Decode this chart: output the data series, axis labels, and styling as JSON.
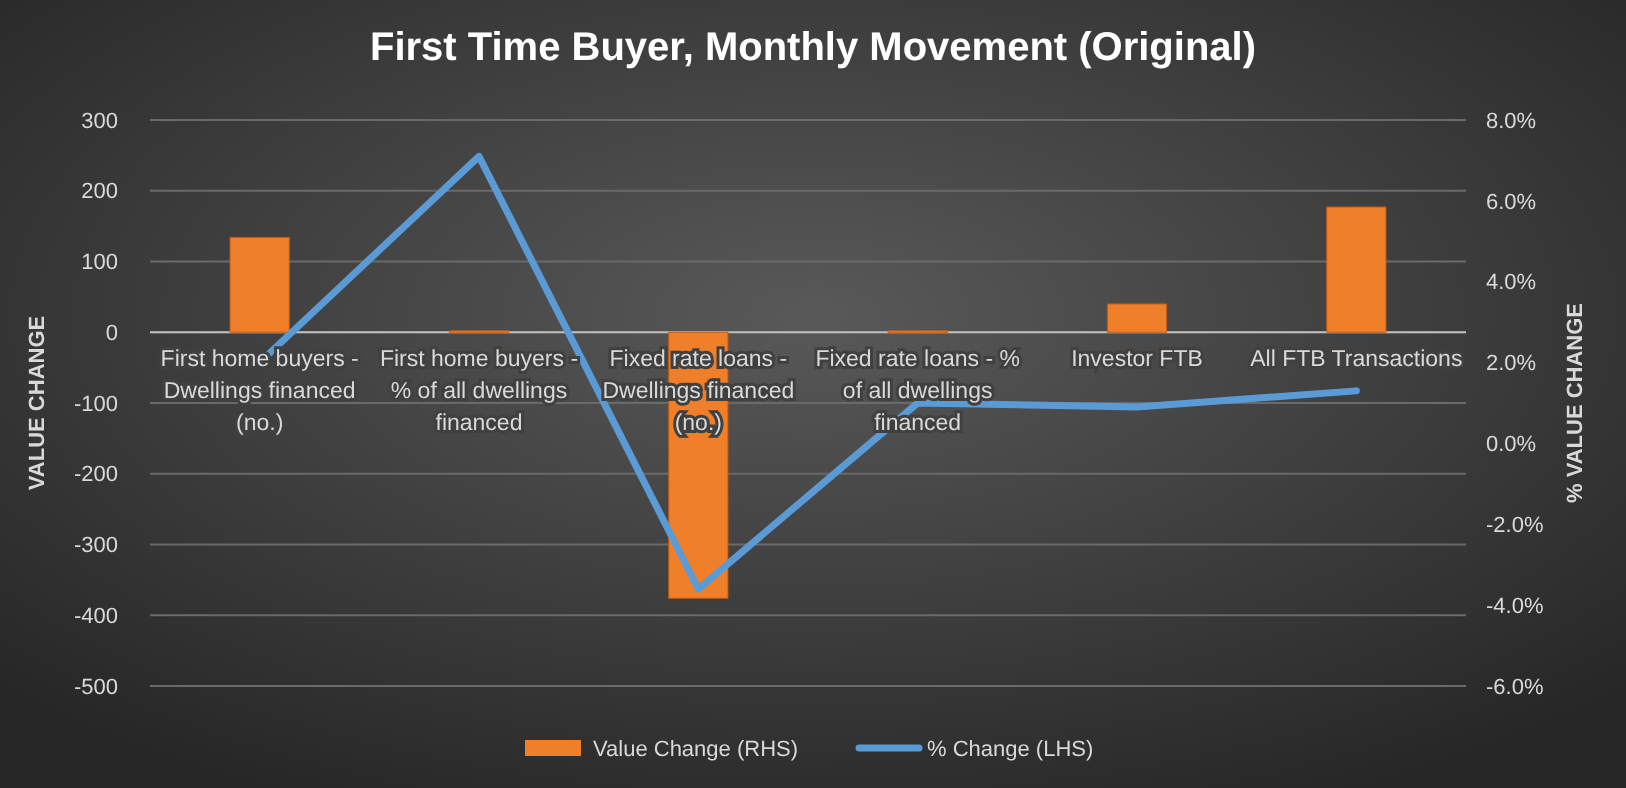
{
  "chart_data": {
    "type": "bar",
    "title": "First Time Buyer, Monthly Movement (Original)",
    "ylabel": "VALUE CHANGE",
    "y2label": "% VALUE CHANGE",
    "categories": [
      "First home buyers - Dwellings financed (no.)",
      "First home buyers - % of all dwellings financed",
      "Fixed rate loans - Dwellings financed (no.)",
      "Fixed rate loans - % of all dwellings financed",
      "Investor FTB",
      "All FTB Transactions"
    ],
    "series": [
      {
        "name": "Value Change (RHS)",
        "color": "#f07f2a",
        "values": [
          134,
          2,
          -376,
          2,
          40,
          177
        ]
      },
      {
        "name": "% Change (LHS)",
        "type": "line",
        "axis": "y2",
        "color": "#5b9bd5",
        "values": [
          2.0,
          7.1,
          -3.6,
          1.0,
          0.9,
          1.3
        ]
      }
    ],
    "ylim": [
      -500,
      300
    ],
    "yticks": [
      -500,
      -400,
      -300,
      -200,
      -100,
      0,
      100,
      200,
      300
    ],
    "y2lim": [
      -6,
      8
    ],
    "y2ticks": [
      {
        "value": -6,
        "label": "-6.0%"
      },
      {
        "value": -4,
        "label": "-4.0%"
      },
      {
        "value": -2,
        "label": "-2.0%"
      },
      {
        "value": 0,
        "label": "0.0%"
      },
      {
        "value": 2,
        "label": "2.0%"
      },
      {
        "value": 4,
        "label": "4.0%"
      },
      {
        "value": 6,
        "label": "6.0%"
      },
      {
        "value": 8,
        "label": "8.0%"
      }
    ],
    "grid": "y",
    "legend": "bottom",
    "marker": "none",
    "line_style": "solid"
  }
}
